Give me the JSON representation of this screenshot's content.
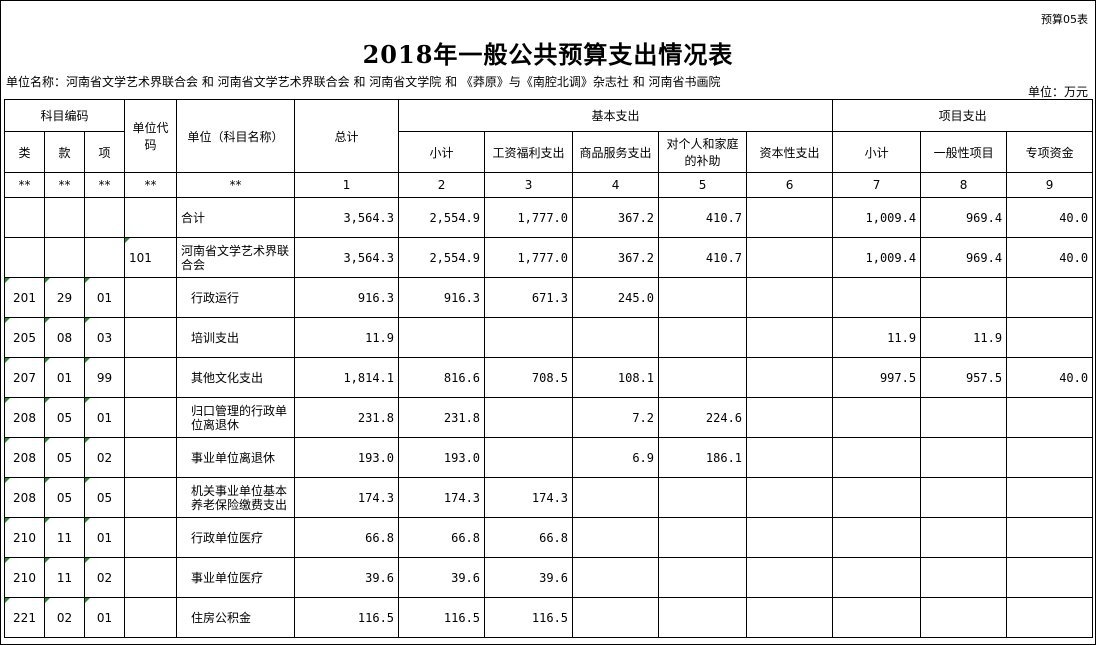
{
  "form_code": "预算05表",
  "title": "2018年一般公共预算支出情况表",
  "unit_name": "单位名称：河南省文学艺术界联合会  和  河南省文学艺术界联合会  和  河南省文学院  和  《莽原》与《南腔北调》杂志社  和  河南省书画院",
  "unit_label": "单位：万元",
  "headers": {
    "subject_code": "科目编码",
    "unit_code": "单位代码",
    "unit_subject": "单位（科目名称）",
    "total": "总计",
    "basic": "基本支出",
    "project": "项目支出",
    "lei": "类",
    "kuan": "款",
    "xiang": "项",
    "basic_subtotal": "小计",
    "wage": "工资福利支出",
    "goods": "商品服务支出",
    "personal": "对个人和家庭的补助",
    "capital": "资本性支出",
    "project_subtotal": "小计",
    "general": "一般性项目",
    "special": "专项资金"
  },
  "index_row": [
    "**",
    "**",
    "**",
    "**",
    "**",
    "1",
    "2",
    "3",
    "4",
    "5",
    "6",
    "7",
    "8",
    "9"
  ],
  "rows": [
    {
      "lei": "",
      "kuan": "",
      "xiang": "",
      "code": "",
      "name": "合计",
      "total": "3,564.3",
      "basic_sub": "2,554.9",
      "wage": "1,777.0",
      "goods": "367.2",
      "personal": "410.7",
      "capital": "",
      "proj_sub": "1,009.4",
      "general": "969.4",
      "special": "40.0"
    },
    {
      "lei": "",
      "kuan": "",
      "xiang": "",
      "code": "101",
      "name": "河南省文学艺术界联合会",
      "total": "3,564.3",
      "basic_sub": "2,554.9",
      "wage": "1,777.0",
      "goods": "367.2",
      "personal": "410.7",
      "capital": "",
      "proj_sub": "1,009.4",
      "general": "969.4",
      "special": "40.0"
    },
    {
      "lei": "201",
      "kuan": "29",
      "xiang": "01",
      "code": "",
      "name": "行政运行",
      "total": "916.3",
      "basic_sub": "916.3",
      "wage": "671.3",
      "goods": "245.0",
      "personal": "",
      "capital": "",
      "proj_sub": "",
      "general": "",
      "special": ""
    },
    {
      "lei": "205",
      "kuan": "08",
      "xiang": "03",
      "code": "",
      "name": "培训支出",
      "total": "11.9",
      "basic_sub": "",
      "wage": "",
      "goods": "",
      "personal": "",
      "capital": "",
      "proj_sub": "11.9",
      "general": "11.9",
      "special": ""
    },
    {
      "lei": "207",
      "kuan": "01",
      "xiang": "99",
      "code": "",
      "name": "其他文化支出",
      "total": "1,814.1",
      "basic_sub": "816.6",
      "wage": "708.5",
      "goods": "108.1",
      "personal": "",
      "capital": "",
      "proj_sub": "997.5",
      "general": "957.5",
      "special": "40.0"
    },
    {
      "lei": "208",
      "kuan": "05",
      "xiang": "01",
      "code": "",
      "name": "归口管理的行政单位离退休",
      "total": "231.8",
      "basic_sub": "231.8",
      "wage": "",
      "goods": "7.2",
      "personal": "224.6",
      "capital": "",
      "proj_sub": "",
      "general": "",
      "special": ""
    },
    {
      "lei": "208",
      "kuan": "05",
      "xiang": "02",
      "code": "",
      "name": "事业单位离退休",
      "total": "193.0",
      "basic_sub": "193.0",
      "wage": "",
      "goods": "6.9",
      "personal": "186.1",
      "capital": "",
      "proj_sub": "",
      "general": "",
      "special": ""
    },
    {
      "lei": "208",
      "kuan": "05",
      "xiang": "05",
      "code": "",
      "name": "机关事业单位基本养老保险缴费支出",
      "total": "174.3",
      "basic_sub": "174.3",
      "wage": "174.3",
      "goods": "",
      "personal": "",
      "capital": "",
      "proj_sub": "",
      "general": "",
      "special": ""
    },
    {
      "lei": "210",
      "kuan": "11",
      "xiang": "01",
      "code": "",
      "name": "行政单位医疗",
      "total": "66.8",
      "basic_sub": "66.8",
      "wage": "66.8",
      "goods": "",
      "personal": "",
      "capital": "",
      "proj_sub": "",
      "general": "",
      "special": ""
    },
    {
      "lei": "210",
      "kuan": "11",
      "xiang": "02",
      "code": "",
      "name": "事业单位医疗",
      "total": "39.6",
      "basic_sub": "39.6",
      "wage": "39.6",
      "goods": "",
      "personal": "",
      "capital": "",
      "proj_sub": "",
      "general": "",
      "special": ""
    },
    {
      "lei": "221",
      "kuan": "02",
      "xiang": "01",
      "code": "",
      "name": "住房公积金",
      "total": "116.5",
      "basic_sub": "116.5",
      "wage": "116.5",
      "goods": "",
      "personal": "",
      "capital": "",
      "proj_sub": "",
      "general": "",
      "special": ""
    }
  ]
}
